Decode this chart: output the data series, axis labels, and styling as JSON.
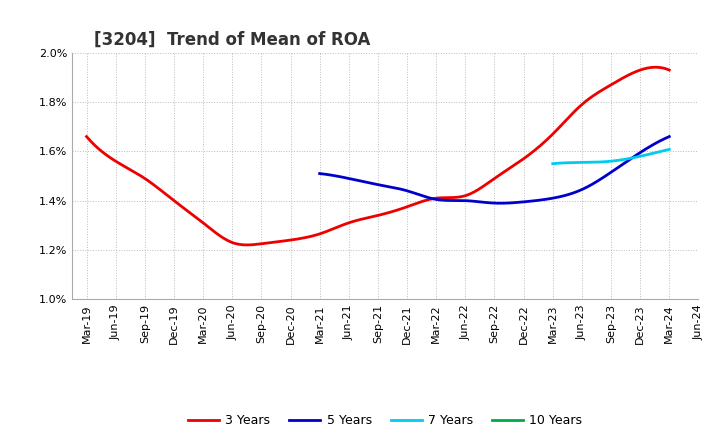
{
  "title": "[3204]  Trend of Mean of ROA",
  "ylim": [
    0.01,
    0.02
  ],
  "yticks": [
    0.01,
    0.012,
    0.014,
    0.016,
    0.018,
    0.02
  ],
  "background_color": "#ffffff",
  "plot_bg_color": "#ffffff",
  "grid_color": "#aaaaaa",
  "series": {
    "3 Years": {
      "color": "#ee0000",
      "x_indices": [
        0,
        1,
        2,
        3,
        4,
        5,
        6,
        7,
        8,
        9,
        10,
        11,
        12,
        13,
        14,
        15,
        16,
        17,
        18,
        19,
        20
      ],
      "y": [
        0.0166,
        0.0156,
        0.0149,
        0.014,
        0.0131,
        0.0123,
        0.01225,
        0.0124,
        0.01265,
        0.0131,
        0.0134,
        0.01375,
        0.0141,
        0.0142,
        0.0149,
        0.0157,
        0.0167,
        0.0179,
        0.0187,
        0.0193,
        0.0193
      ]
    },
    "5 Years": {
      "color": "#0000cc",
      "x_indices": [
        8,
        9,
        10,
        11,
        12,
        13,
        14,
        15,
        16,
        17,
        18,
        19,
        20
      ],
      "y": [
        0.0151,
        0.0149,
        0.01465,
        0.0144,
        0.01405,
        0.014,
        0.0139,
        0.01395,
        0.0141,
        0.01445,
        0.01515,
        0.01595,
        0.0166
      ]
    },
    "7 Years": {
      "color": "#00ccee",
      "x_indices": [
        16,
        17,
        18,
        19,
        20
      ],
      "y": [
        0.0155,
        0.01555,
        0.0156,
        0.0158,
        0.01608
      ]
    },
    "10 Years": {
      "color": "#00aa44",
      "x_indices": [],
      "y": []
    }
  },
  "x_labels": [
    "Mar-19",
    "Jun-19",
    "Sep-19",
    "Dec-19",
    "Mar-20",
    "Jun-20",
    "Sep-20",
    "Dec-20",
    "Mar-21",
    "Jun-21",
    "Sep-21",
    "Dec-21",
    "Mar-22",
    "Jun-22",
    "Sep-22",
    "Dec-22",
    "Mar-23",
    "Jun-23",
    "Sep-23",
    "Dec-23",
    "Mar-24",
    "Jun-24"
  ],
  "legend_order": [
    "3 Years",
    "5 Years",
    "7 Years",
    "10 Years"
  ],
  "legend_colors": {
    "3 Years": "#ee0000",
    "5 Years": "#0000cc",
    "7 Years": "#00ccee",
    "10 Years": "#00aa44"
  },
  "title_fontsize": 12,
  "tick_fontsize": 8,
  "linewidth": 2.0
}
